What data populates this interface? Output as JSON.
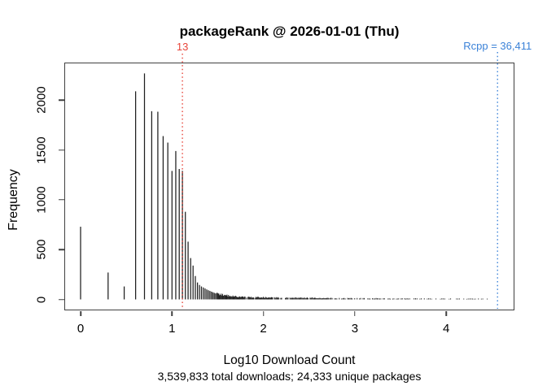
{
  "figure": {
    "title": "packageRank @ 2026-01-01 (Thu)",
    "x_axis_label": "Log10 Download Count",
    "y_axis_label": "Frequency",
    "subtitle": "3,539,833 total downloads; 24,333 unique packages",
    "annotations": {
      "red": {
        "label": "13",
        "log10": 1.11394,
        "color": "#e8453a"
      },
      "blue": {
        "label": "Rcpp = 36,411",
        "log10": 4.56124,
        "color": "#3b82d8"
      }
    }
  },
  "chart_data": {
    "type": "bar",
    "subtype": "histogram-spikes",
    "title": "packageRank @ 2026-01-01 (Thu)",
    "xlabel": "Log10 Download Count",
    "ylabel": "Frequency",
    "footnote": "3,539,833 total downloads; 24,333 unique packages",
    "x_ticks": [
      0,
      1,
      2,
      3,
      4
    ],
    "y_ticks": [
      0,
      500,
      1000,
      1500,
      2000
    ],
    "xlim": [
      -0.18,
      4.75
    ],
    "ylim": [
      0,
      2350
    ],
    "grid": false,
    "legend": "none",
    "spike_color": "#1f1f1f",
    "axis_color": "#404040",
    "marked_value": {
      "download_count": 13,
      "label": "13",
      "line_style": "red dotted vertical"
    },
    "max_package": {
      "name": "Rcpp",
      "downloads": 36411,
      "log10": 4.56124,
      "line_style": "blue dotted vertical"
    },
    "totals": {
      "total_downloads": 3539833,
      "unique_packages": 24333
    },
    "spikes_count_vs_frequency": [
      [
        1,
        730
      ],
      [
        2,
        270
      ],
      [
        3,
        130
      ],
      [
        4,
        2090
      ],
      [
        5,
        2270
      ],
      [
        6,
        1890
      ],
      [
        7,
        1885
      ],
      [
        8,
        1640
      ],
      [
        9,
        1575
      ],
      [
        10,
        1290
      ],
      [
        11,
        1490
      ],
      [
        12,
        1310
      ],
      [
        13,
        1290
      ],
      [
        14,
        880
      ],
      [
        15,
        580
      ],
      [
        16,
        415
      ],
      [
        17,
        340
      ],
      [
        18,
        235
      ],
      [
        19,
        170
      ],
      [
        20,
        145
      ],
      [
        21,
        130
      ],
      [
        22,
        120
      ],
      [
        23,
        110
      ],
      [
        24,
        100
      ],
      [
        25,
        92
      ],
      [
        26,
        85
      ],
      [
        27,
        78
      ],
      [
        28,
        72
      ],
      [
        29,
        66
      ],
      [
        30,
        60
      ]
    ],
    "tail_segments": [
      {
        "from": 1.49,
        "to": 1.72,
        "f_from": 55,
        "f_to": 26,
        "step": 0.008,
        "gap": 0.05
      },
      {
        "from": 1.72,
        "to": 2.1,
        "f_from": 26,
        "f_to": 18,
        "step": 0.008,
        "gap": 0.08
      },
      {
        "from": 2.1,
        "to": 2.7,
        "f_from": 18,
        "f_to": 13,
        "step": 0.01,
        "gap": 0.15
      },
      {
        "from": 2.7,
        "to": 3.6,
        "f_from": 13,
        "f_to": 9,
        "step": 0.013,
        "gap": 0.28
      },
      {
        "from": 3.6,
        "to": 4.45,
        "f_from": 9,
        "f_to": 7,
        "step": 0.016,
        "gap": 0.38
      }
    ],
    "seed": 90125
  }
}
